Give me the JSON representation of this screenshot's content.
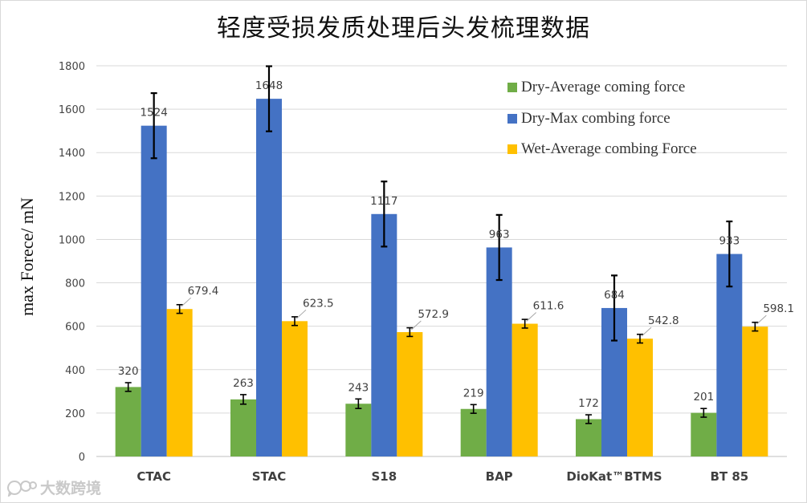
{
  "chart_data": {
    "type": "bar",
    "title": "轻度受损发质处理后头发梳理数据",
    "ylabel": "max Forece/ mN",
    "xlabel": "",
    "ylim": [
      0,
      1800
    ],
    "yticks": [
      0,
      200,
      400,
      600,
      800,
      1000,
      1200,
      1400,
      1600,
      1800
    ],
    "grid": true,
    "legend_position": "top-right",
    "categories": [
      "CTAC",
      "STAC",
      "S18",
      "BAP",
      "DioKat™BTMS",
      "BT 85"
    ],
    "series": [
      {
        "name": "Dry-Average coming force",
        "color": "#70ad47",
        "values": [
          320,
          263,
          243,
          219,
          172,
          201
        ],
        "labels": [
          "320",
          "263",
          "243",
          "219",
          "172",
          "201"
        ],
        "errors": [
          20,
          22,
          22,
          20,
          20,
          20
        ]
      },
      {
        "name": "Dry-Max combing force",
        "color": "#4472c4",
        "values": [
          1524,
          1648,
          1117,
          963,
          684,
          933
        ],
        "labels": [
          "1524",
          "1648",
          "1117",
          "963",
          "684",
          "933"
        ],
        "errors": [
          150,
          150,
          150,
          150,
          150,
          150
        ]
      },
      {
        "name": "Wet-Average combing Force",
        "color": "#ffc000",
        "values": [
          679.4,
          623.5,
          572.9,
          611.6,
          542.8,
          598.1
        ],
        "labels": [
          "679.4",
          "623.5",
          "572.9",
          "611.6",
          "542.8",
          "598.1"
        ],
        "errors": [
          20,
          20,
          20,
          20,
          20,
          20
        ]
      }
    ]
  },
  "watermark": {
    "text": "大数跨境",
    "icon": "chat-bubble-logo-icon"
  }
}
